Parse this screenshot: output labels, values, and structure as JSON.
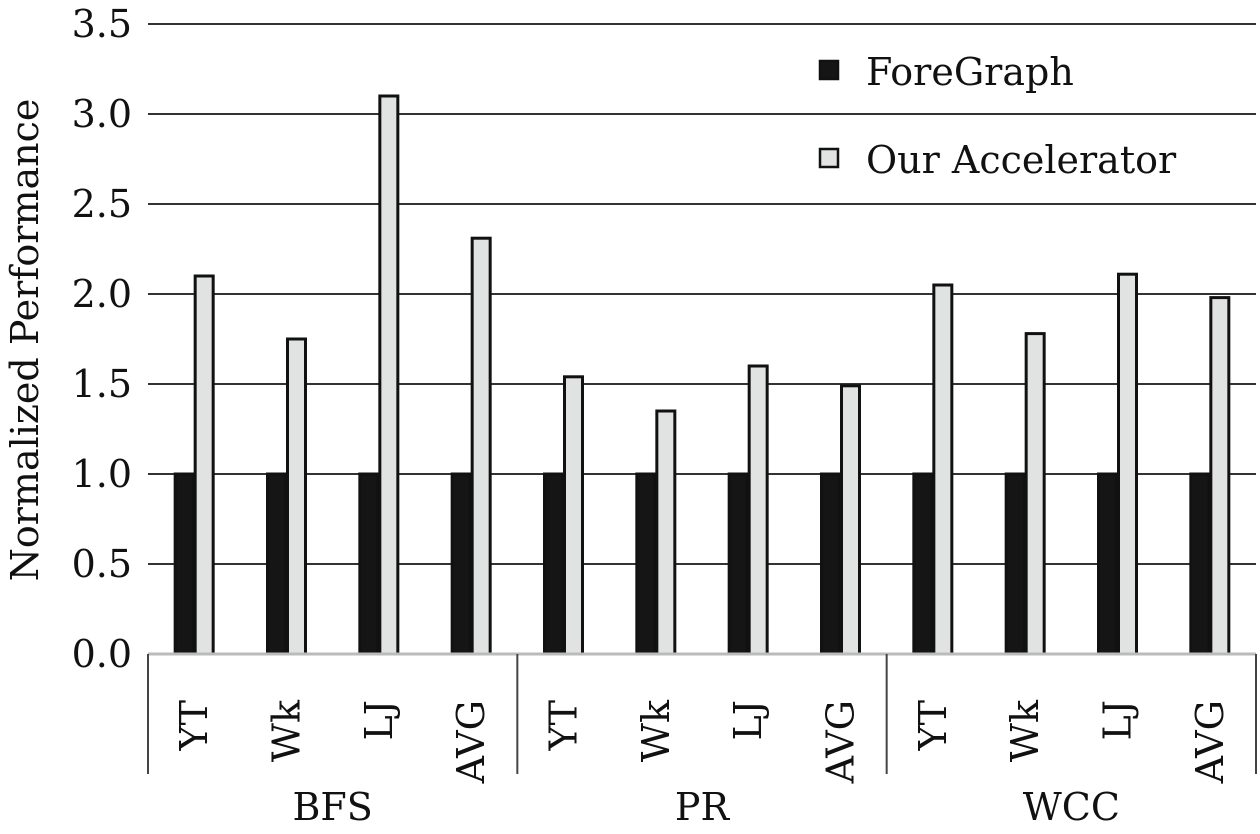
{
  "chart_data": {
    "type": "bar",
    "ylabel": "Normalized Performance",
    "ylim": [
      0,
      3.5
    ],
    "yticks": [
      "0.0",
      "0.5",
      "1.0",
      "1.5",
      "2.0",
      "2.5",
      "3.0",
      "3.5"
    ],
    "grid": true,
    "legend_position": "top-right",
    "groups": [
      {
        "name": "BFS",
        "categories": [
          "YT",
          "Wk",
          "LJ",
          "AVG"
        ]
      },
      {
        "name": "PR",
        "categories": [
          "YT",
          "Wk",
          "LJ",
          "AVG"
        ]
      },
      {
        "name": "WCC",
        "categories": [
          "YT",
          "Wk",
          "LJ",
          "AVG"
        ]
      }
    ],
    "series": [
      {
        "name": "ForeGraph",
        "color": "#151515",
        "values": [
          1.0,
          1.0,
          1.0,
          1.0,
          1.0,
          1.0,
          1.0,
          1.0,
          1.0,
          1.0,
          1.0,
          1.0
        ]
      },
      {
        "name": "Our Accelerator",
        "color": "#e0e3e2",
        "values": [
          2.1,
          1.75,
          3.1,
          2.31,
          1.54,
          1.35,
          1.6,
          1.49,
          2.05,
          1.78,
          2.11,
          1.98
        ]
      }
    ]
  }
}
